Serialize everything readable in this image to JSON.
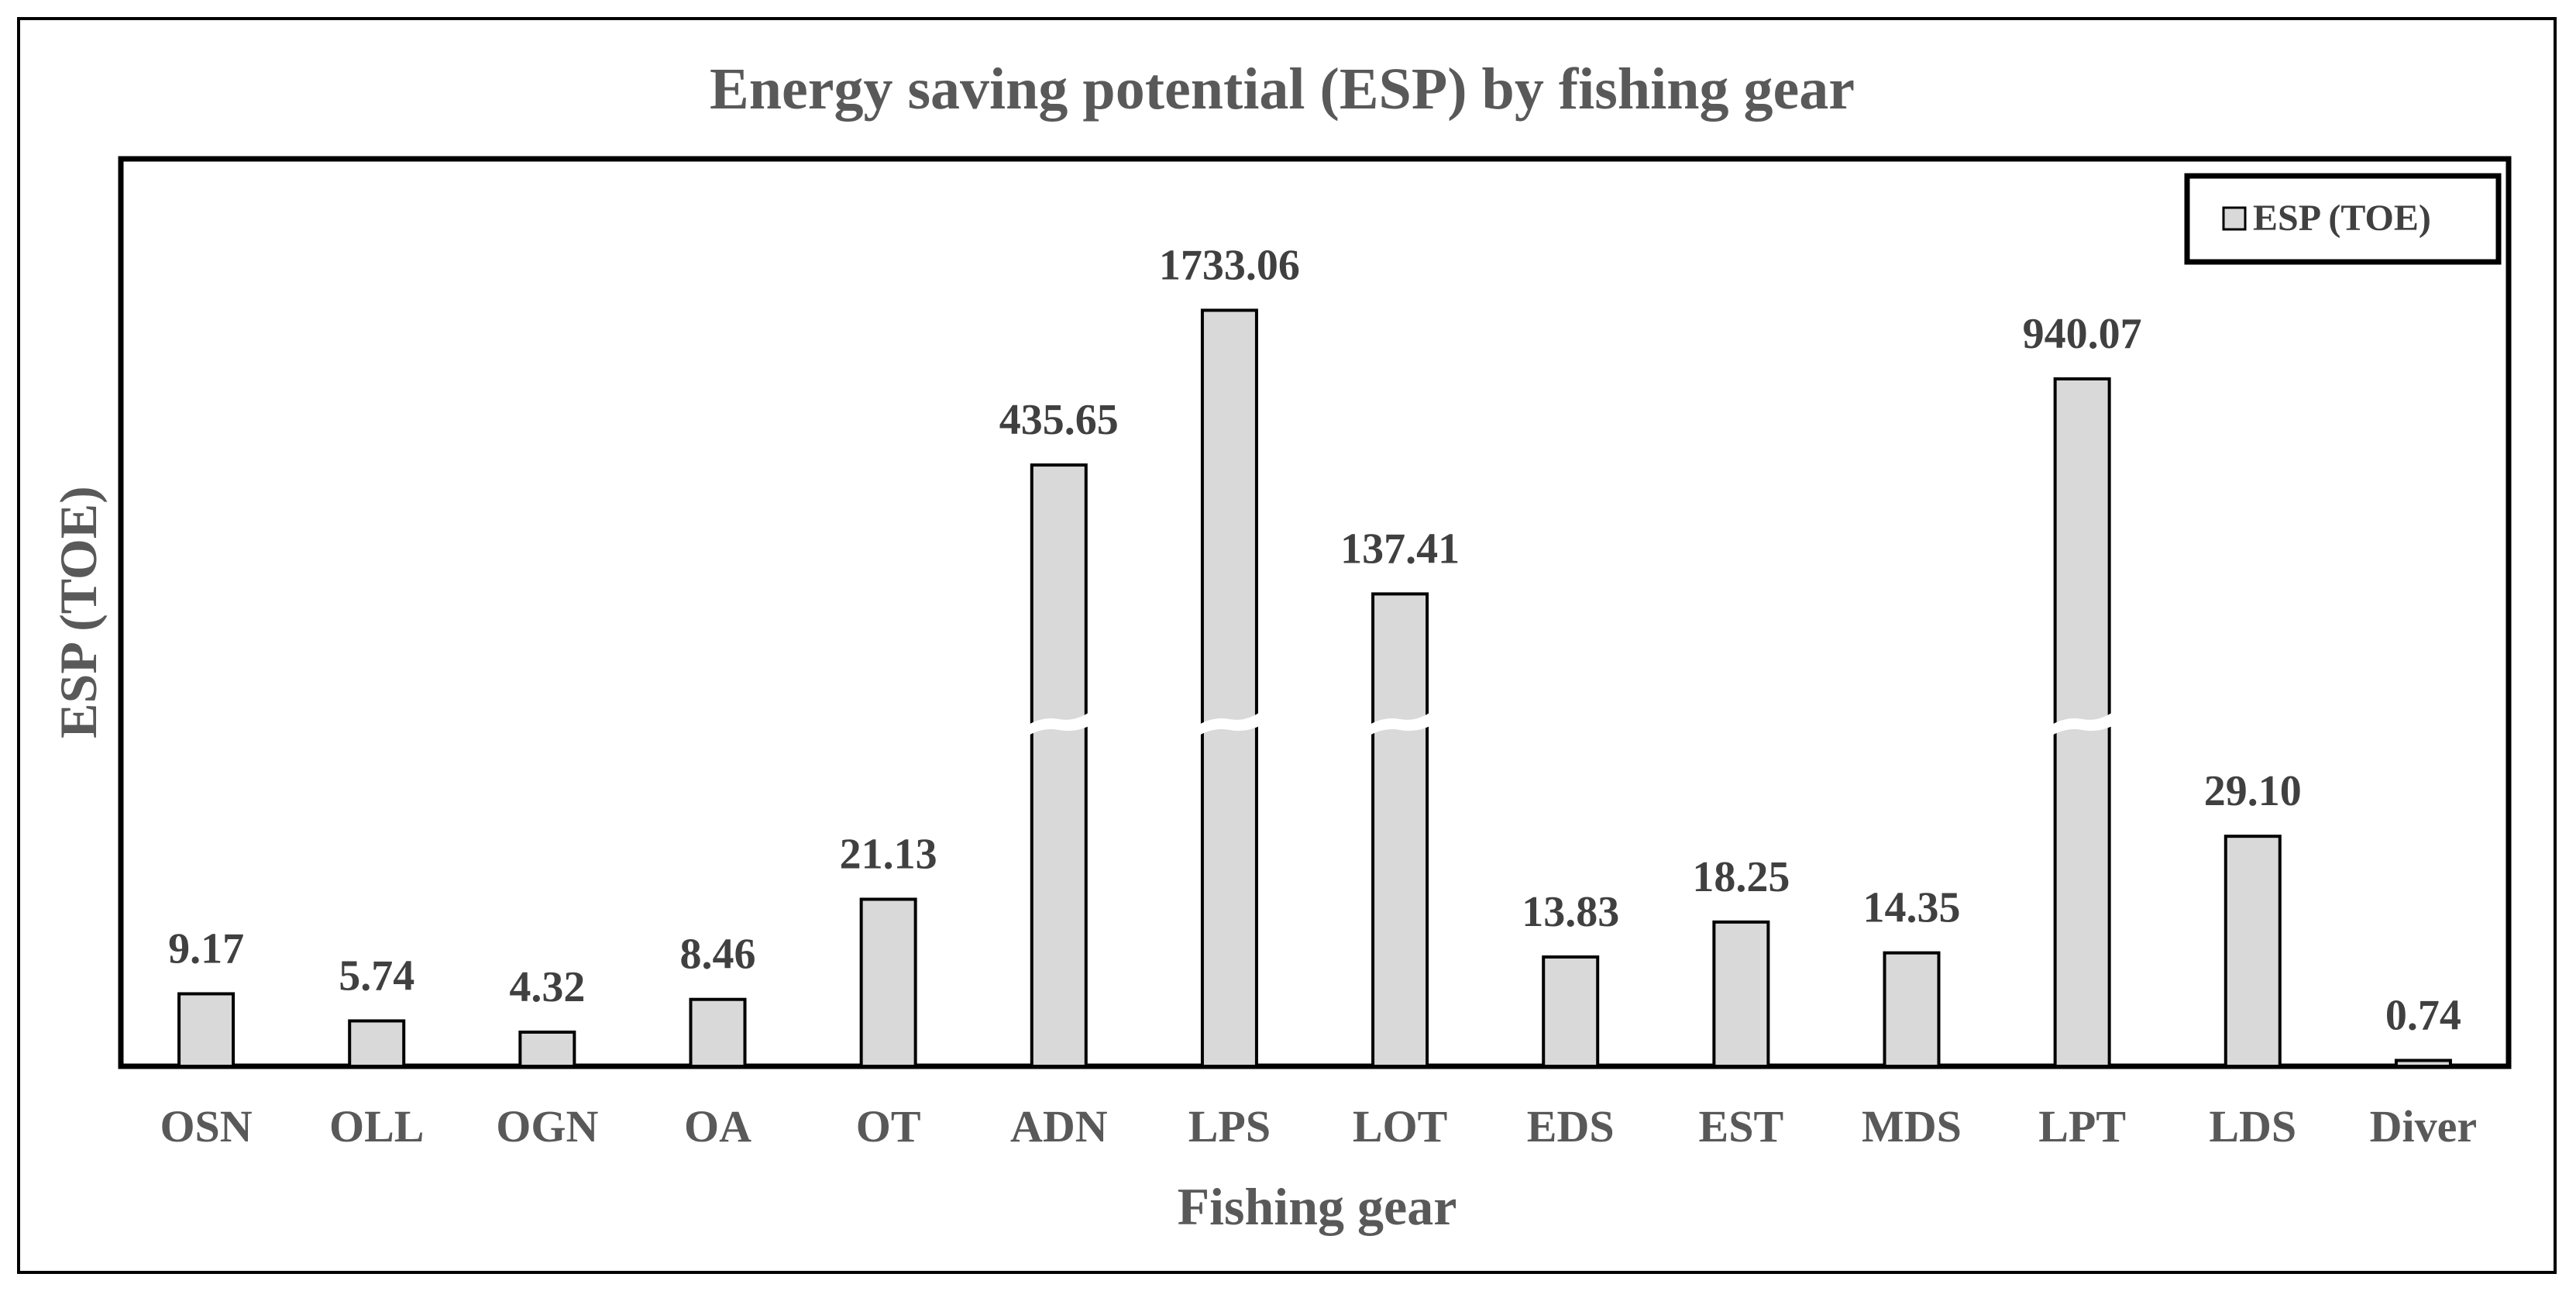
{
  "chart_data": {
    "type": "bar",
    "title": "Energy saving potential (ESP) by fishing gear",
    "xlabel": "Fishing gear",
    "ylabel": "ESP (TOE)",
    "categories": [
      "OSN",
      "OLL",
      "OGN",
      "OA",
      "OT",
      "ADN",
      "LPS",
      "LOT",
      "EDS",
      "EST",
      "MDS",
      "LPT",
      "LDS",
      "Diver"
    ],
    "series": [
      {
        "name": "ESP (TOE)",
        "values": [
          9.17,
          5.74,
          4.32,
          8.46,
          21.13,
          435.65,
          1733.06,
          137.41,
          13.83,
          18.25,
          14.35,
          940.07,
          29.1,
          0.74
        ],
        "labels": [
          "9.17",
          "5.74",
          "4.32",
          "8.46",
          "21.13",
          "435.65",
          "1733.06",
          "137.41",
          "13.83",
          "18.25",
          "14.35",
          "940.07",
          "29.10",
          "0.74"
        ],
        "color": "#d9d9d9",
        "edge_color": "#000000"
      }
    ],
    "axis_break": true,
    "broken_categories": [
      "ADN",
      "LPS",
      "LOT",
      "LPT"
    ],
    "grid": false,
    "legend": {
      "label": "ESP (TOE)",
      "position": "top-right"
    }
  }
}
